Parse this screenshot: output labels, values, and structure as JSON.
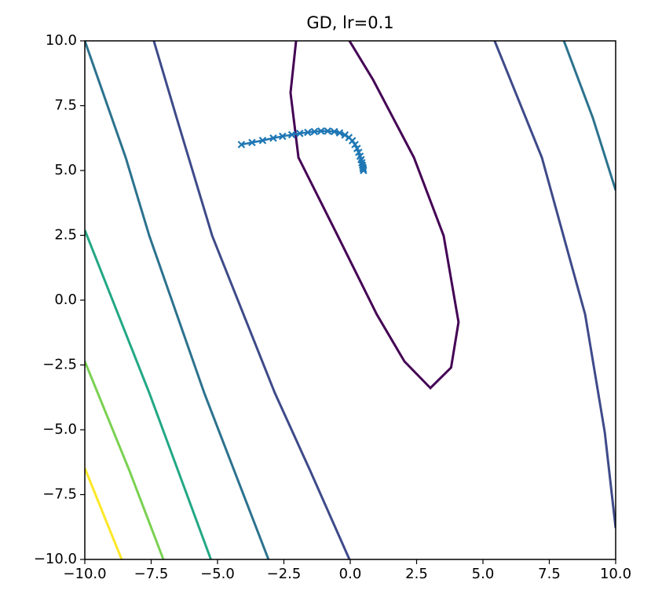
{
  "chart_data": {
    "type": "contour",
    "title": "GD, lr=0.1",
    "xlim": [
      -10,
      10
    ],
    "ylim": [
      -10,
      10
    ],
    "xticks": [
      {
        "value": -10,
        "label": "−10.0"
      },
      {
        "value": -7.5,
        "label": "−7.5"
      },
      {
        "value": -5,
        "label": "−5.0"
      },
      {
        "value": -2.5,
        "label": "−2.5"
      },
      {
        "value": 0,
        "label": "0.0"
      },
      {
        "value": 2.5,
        "label": "2.5"
      },
      {
        "value": 5,
        "label": "5.0"
      },
      {
        "value": 7.5,
        "label": "7.5"
      },
      {
        "value": 10,
        "label": "10.0"
      }
    ],
    "yticks": [
      {
        "value": -10,
        "label": "−10.0"
      },
      {
        "value": -7.5,
        "label": "−7.5"
      },
      {
        "value": -5,
        "label": "−5.0"
      },
      {
        "value": -2.5,
        "label": "−2.5"
      },
      {
        "value": 0,
        "label": "0.0"
      },
      {
        "value": 2.5,
        "label": "2.5"
      },
      {
        "value": 5,
        "label": "5.0"
      },
      {
        "value": 7.5,
        "label": "7.5"
      },
      {
        "value": 10,
        "label": "10.0"
      }
    ],
    "contours": [
      {
        "color": "#440154",
        "x": [
          -0.03,
          0.86,
          2.4,
          3.52,
          4.08,
          3.8,
          3.02,
          2.04,
          1.0,
          -0.47,
          -1.95,
          -2.25,
          -2.04
        ],
        "y": [
          10,
          8.5,
          5.5,
          2.48,
          -0.85,
          -2.6,
          -3.39,
          -2.36,
          -0.55,
          2.48,
          5.5,
          8.0,
          10
        ]
      },
      {
        "color": "#3e4a89",
        "x": [
          -7.4,
          -6.54,
          -5.2,
          -2.84,
          -1.5,
          -0.03
        ],
        "y": [
          10,
          7.03,
          2.48,
          -3.58,
          -6.6,
          -10
        ]
      },
      {
        "color": "#3e4a89",
        "x": [
          5.44,
          7.22,
          8.85,
          9.59,
          10
        ],
        "y": [
          10,
          5.5,
          -0.55,
          -5.1,
          -8.79
        ]
      },
      {
        "color": "#2c728e",
        "x": [
          -10,
          -8.46,
          -7.57,
          -5.5,
          -3.08
        ],
        "y": [
          10,
          5.5,
          2.48,
          -3.58,
          -10
        ]
      },
      {
        "color": "#2c728e",
        "x": [
          8.05,
          9.14,
          10
        ],
        "y": [
          10,
          7.03,
          4.24
        ]
      },
      {
        "color": "#22a884",
        "x": [
          -10,
          -7.57,
          -5.25
        ],
        "y": [
          2.7,
          -3.58,
          -10
        ]
      },
      {
        "color": "#7ad151",
        "x": [
          -10,
          -8.31,
          -7.04
        ],
        "y": [
          -2.36,
          -6.6,
          -10
        ]
      },
      {
        "color": "#fde725",
        "x": [
          -10,
          -8.61
        ],
        "y": [
          -6.48,
          -10
        ]
      }
    ],
    "trajectory": {
      "color": "#1f77b4",
      "marker": "x",
      "x": [
        -4.1,
        -3.7,
        -3.3,
        -2.9,
        -2.55,
        -2.2,
        -1.9,
        -1.6,
        -1.35,
        -1.1,
        -0.85,
        -0.6,
        -0.4,
        -0.2,
        -0.05,
        0.08,
        0.18,
        0.26,
        0.32,
        0.37,
        0.41,
        0.44,
        0.46,
        0.48,
        0.49,
        0.5
      ],
      "y": [
        6.0,
        6.08,
        6.16,
        6.25,
        6.32,
        6.38,
        6.43,
        6.47,
        6.5,
        6.52,
        6.52,
        6.5,
        6.45,
        6.37,
        6.27,
        6.15,
        6.0,
        5.85,
        5.7,
        5.55,
        5.42,
        5.3,
        5.2,
        5.12,
        5.06,
        5.0
      ]
    }
  }
}
